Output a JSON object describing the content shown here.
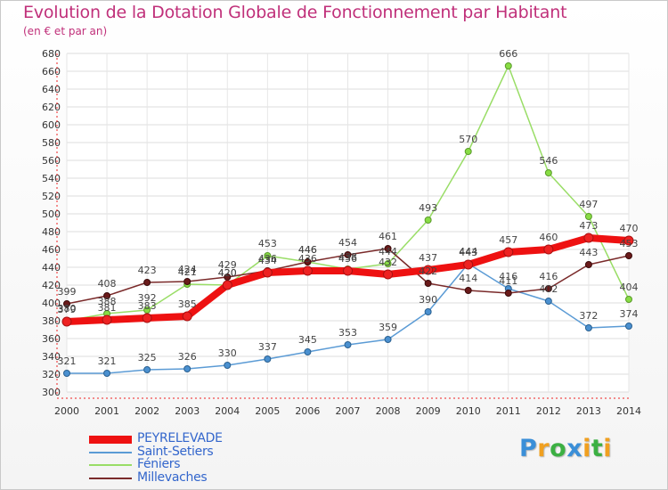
{
  "chart_data": {
    "type": "line",
    "title": "Evolution de la Dotation Globale de Fonctionnement par Habitant",
    "subtitle": "(en € et par an)",
    "xlabel": "",
    "ylabel": "",
    "x": [
      "2000",
      "2001",
      "2002",
      "2003",
      "2004",
      "2005",
      "2006",
      "2007",
      "2008",
      "2009",
      "2010",
      "2011",
      "2012",
      "2013",
      "2014"
    ],
    "ylim": [
      300,
      680
    ],
    "yticks": [
      300,
      320,
      340,
      360,
      380,
      400,
      420,
      440,
      460,
      480,
      500,
      520,
      540,
      560,
      580,
      600,
      620,
      640,
      660,
      680
    ],
    "grid": true,
    "legend_position": "bottom-left",
    "series": [
      {
        "name": "PEYRELEVADE",
        "color": "#ee1111",
        "values": [
          379,
          381,
          383,
          385,
          420,
          434,
          436,
          436,
          432,
          437,
          443,
          457,
          460,
          473,
          470
        ]
      },
      {
        "name": "Saint-Setiers",
        "color": "#5b9bd5",
        "values": [
          321,
          321,
          325,
          326,
          330,
          337,
          345,
          353,
          359,
          390,
          444,
          416,
          402,
          372,
          374
        ]
      },
      {
        "name": "Féniers",
        "color": "#99dd66",
        "values": [
          380,
          388,
          392,
          421,
          420,
          453,
          446,
          438,
          444,
          493,
          570,
          666,
          546,
          497,
          404
        ]
      },
      {
        "name": "Millevaches",
        "color": "#7a2a2a",
        "values": [
          399,
          408,
          423,
          424,
          429,
          436,
          446,
          454,
          461,
          422,
          414,
          411,
          416,
          443,
          453
        ]
      }
    ]
  },
  "brand": {
    "letters": [
      "P",
      "r",
      "o",
      "x",
      "i",
      "t",
      "i"
    ],
    "colors": [
      "#3a8fd8",
      "#f0a020",
      "#3cb043",
      "#3a8fd8",
      "#f0a020",
      "#3cb043",
      "#f0a020"
    ]
  }
}
